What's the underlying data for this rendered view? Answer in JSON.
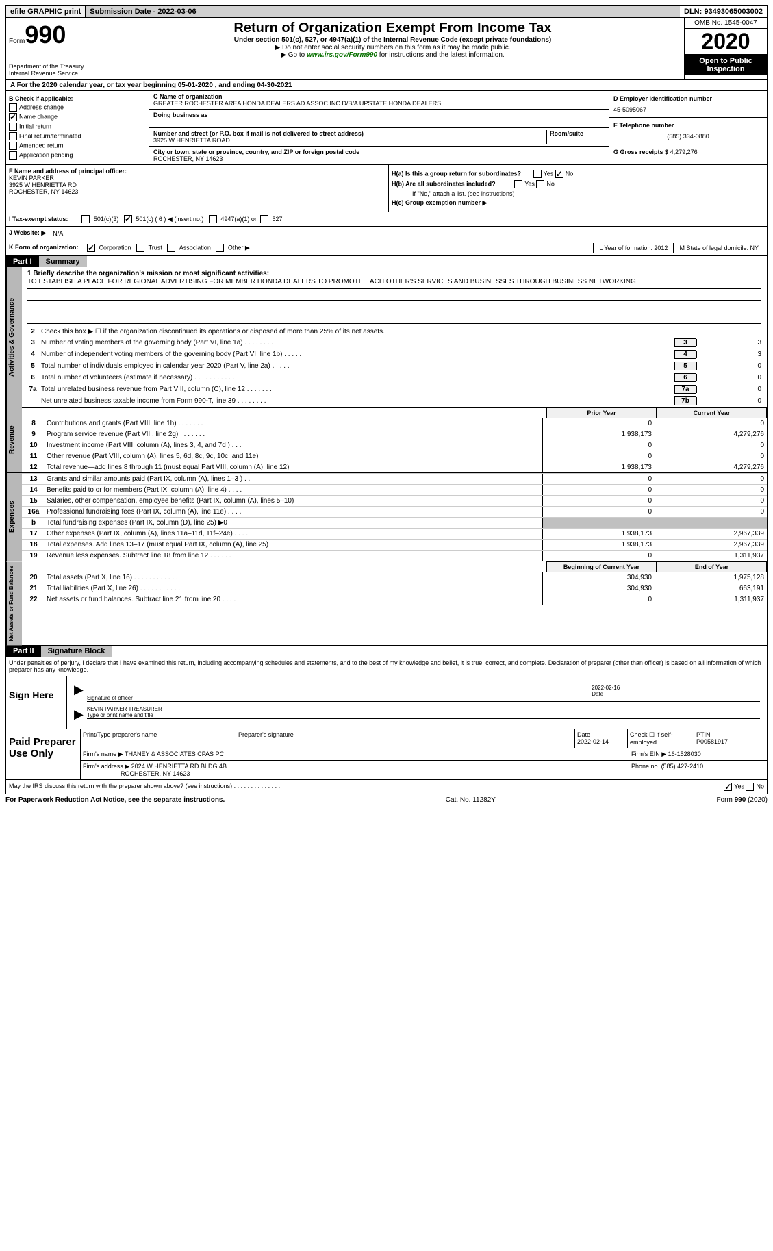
{
  "topbar": {
    "efile": "efile GRAPHIC print",
    "submission": "Submission Date - 2022-03-06",
    "dln": "DLN: 93493065003002"
  },
  "header": {
    "form_label": "Form",
    "form_num": "990",
    "dept": "Department of the Treasury Internal Revenue Service",
    "title": "Return of Organization Exempt From Income Tax",
    "subtitle": "Under section 501(c), 527, or 4947(a)(1) of the Internal Revenue Code (except private foundations)",
    "arrow1": "▶ Do not enter social security numbers on this form as it may be made public.",
    "arrow2_prefix": "▶ Go to ",
    "arrow2_link": "www.irs.gov/Form990",
    "arrow2_suffix": " for instructions and the latest information.",
    "omb": "OMB No. 1545-0047",
    "year": "2020",
    "inspection": "Open to Public Inspection"
  },
  "section_a": "A For the 2020 calendar year, or tax year beginning 05-01-2020    , and ending 04-30-2021",
  "col_b": {
    "header": "B Check if applicable:",
    "items": [
      {
        "label": "Address change",
        "checked": false
      },
      {
        "label": "Name change",
        "checked": true
      },
      {
        "label": "Initial return",
        "checked": false
      },
      {
        "label": "Final return/terminated",
        "checked": false
      },
      {
        "label": "Amended return",
        "checked": false
      },
      {
        "label": "Application pending",
        "checked": false
      }
    ]
  },
  "col_c": {
    "name_label": "C Name of organization",
    "name": "GREATER ROCHESTER AREA HONDA DEALERS AD ASSOC INC D/B/A UPSTATE HONDA DEALERS",
    "dba_label": "Doing business as",
    "address_label": "Number and street (or P.O. box if mail is not delivered to street address)",
    "room_label": "Room/suite",
    "address": "3925 W HENRIETTA ROAD",
    "city_label": "City or town, state or province, country, and ZIP or foreign postal code",
    "city": "ROCHESTER, NY  14623"
  },
  "col_right": {
    "d_label": "D Employer identification number",
    "d_val": "45-5095067",
    "e_label": "E Telephone number",
    "e_val": "(585) 334-0880",
    "g_label": "G Gross receipts $",
    "g_val": "4,279,276"
  },
  "f": {
    "label": "F Name and address of principal officer:",
    "name": "KEVIN PARKER",
    "addr": "3925 W HENRIETTA RD",
    "city": "ROCHESTER, NY  14623"
  },
  "h": {
    "a_label": "H(a)  Is this a group return for subordinates?",
    "b_label": "H(b)  Are all subordinates included?",
    "note": "If \"No,\" attach a list. (see instructions)",
    "c_label": "H(c)  Group exemption number ▶"
  },
  "i": {
    "label": "I  Tax-exempt status:",
    "opts": [
      "501(c)(3)",
      "501(c) ( 6 ) ◀ (insert no.)",
      "4947(a)(1) or",
      "527"
    ],
    "checked_idx": 1
  },
  "j": {
    "label": "J  Website: ▶",
    "val": "N/A"
  },
  "k": {
    "label": "K Form of organization:",
    "opts": [
      "Corporation",
      "Trust",
      "Association",
      "Other ▶"
    ],
    "checked_idx": 0,
    "l": "L Year of formation: 2012",
    "m": "M State of legal domicile: NY"
  },
  "part1": {
    "label": "Part I",
    "title": "Summary"
  },
  "mission": {
    "label": "1 Briefly describe the organization's mission or most significant activities:",
    "text": "TO ESTABLISH A PLACE FOR REGIONAL ADVERTISING FOR MEMBER HONDA DEALERS TO PROMOTE EACH OTHER'S SERVICES AND BUSINESSES THROUGH BUSINESS NETWORKING"
  },
  "gov_side": "Activities & Governance",
  "line2": "Check this box ▶ ☐  if the organization discontinued its operations or disposed of more than 25% of its net assets.",
  "gov_lines": [
    {
      "n": "3",
      "t": "Number of voting members of the governing body (Part VI, line 1a)   .   .   .   .   .   .   .   .",
      "box": "3",
      "v": "3"
    },
    {
      "n": "4",
      "t": "Number of independent voting members of the governing body (Part VI, line 1b)   .   .   .   .   .",
      "box": "4",
      "v": "3"
    },
    {
      "n": "5",
      "t": "Total number of individuals employed in calendar year 2020 (Part V, line 2a)   .   .   .   .   .",
      "box": "5",
      "v": "0"
    },
    {
      "n": "6",
      "t": "Total number of volunteers (estimate if necessary)   .   .   .   .   .   .   .   .   .   .   .",
      "box": "6",
      "v": "0"
    },
    {
      "n": "7a",
      "t": "Total unrelated business revenue from Part VIII, column (C), line 12   .   .   .   .   .   .   .",
      "box": "7a",
      "v": "0"
    },
    {
      "n": "",
      "t": "Net unrelated business taxable income from Form 990-T, line 39   .   .   .   .   .   .   .   .",
      "box": "7b",
      "v": "0"
    }
  ],
  "col_headers": {
    "prior": "Prior Year",
    "current": "Current Year"
  },
  "rev_side": "Revenue",
  "rev_lines": [
    {
      "n": "8",
      "t": "Contributions and grants (Part VIII, line 1h)   .   .   .   .   .   .   .",
      "p": "0",
      "c": "0"
    },
    {
      "n": "9",
      "t": "Program service revenue (Part VIII, line 2g)   .   .   .   .   .   .   .",
      "p": "1,938,173",
      "c": "4,279,276"
    },
    {
      "n": "10",
      "t": "Investment income (Part VIII, column (A), lines 3, 4, and 7d )   .   .   .",
      "p": "0",
      "c": "0"
    },
    {
      "n": "11",
      "t": "Other revenue (Part VIII, column (A), lines 5, 6d, 8c, 9c, 10c, and 11e)",
      "p": "0",
      "c": "0"
    },
    {
      "n": "12",
      "t": "Total revenue—add lines 8 through 11 (must equal Part VIII, column (A), line 12)",
      "p": "1,938,173",
      "c": "4,279,276"
    }
  ],
  "exp_side": "Expenses",
  "exp_lines": [
    {
      "n": "13",
      "t": "Grants and similar amounts paid (Part IX, column (A), lines 1–3 )   .   .   .",
      "p": "0",
      "c": "0"
    },
    {
      "n": "14",
      "t": "Benefits paid to or for members (Part IX, column (A), line 4)   .   .   .   .",
      "p": "0",
      "c": "0"
    },
    {
      "n": "15",
      "t": "Salaries, other compensation, employee benefits (Part IX, column (A), lines 5–10)",
      "p": "0",
      "c": "0"
    },
    {
      "n": "16a",
      "t": "Professional fundraising fees (Part IX, column (A), line 11e)   .   .   .   .",
      "p": "0",
      "c": "0"
    },
    {
      "n": "b",
      "t": "Total fundraising expenses (Part IX, column (D), line 25) ▶0",
      "p": "",
      "c": "",
      "shaded": true
    },
    {
      "n": "17",
      "t": "Other expenses (Part IX, column (A), lines 11a–11d, 11f–24e)   .   .   .   .",
      "p": "1,938,173",
      "c": "2,967,339"
    },
    {
      "n": "18",
      "t": "Total expenses. Add lines 13–17 (must equal Part IX, column (A), line 25)",
      "p": "1,938,173",
      "c": "2,967,339"
    },
    {
      "n": "19",
      "t": "Revenue less expenses. Subtract line 18 from line 12   .   .   .   .   .   .",
      "p": "0",
      "c": "1,311,937"
    }
  ],
  "na_side": "Net Assets or Fund Balances",
  "na_headers": {
    "begin": "Beginning of Current Year",
    "end": "End of Year"
  },
  "na_lines": [
    {
      "n": "20",
      "t": "Total assets (Part X, line 16)   .   .   .   .   .   .   .   .   .   .   .   .",
      "p": "304,930",
      "c": "1,975,128"
    },
    {
      "n": "21",
      "t": "Total liabilities (Part X, line 26)   .   .   .   .   .   .   .   .   .   .   .",
      "p": "304,930",
      "c": "663,191"
    },
    {
      "n": "22",
      "t": "Net assets or fund balances. Subtract line 21 from line 20   .   .   .   .",
      "p": "0",
      "c": "1,311,937"
    }
  ],
  "part2": {
    "label": "Part II",
    "title": "Signature Block"
  },
  "declaration": "Under penalties of perjury, I declare that I have examined this return, including accompanying schedules and statements, and to the best of my knowledge and belief, it is true, correct, and complete. Declaration of preparer (other than officer) is based on all information of which preparer has any knowledge.",
  "sign": {
    "label": "Sign Here",
    "sig_label": "Signature of officer",
    "date": "2022-02-16",
    "date_label": "Date",
    "name": "KEVIN PARKER  TREASURER",
    "name_label": "Type or print name and title"
  },
  "preparer": {
    "label": "Paid Preparer Use Only",
    "print_label": "Print/Type preparer's name",
    "sig_label": "Preparer's signature",
    "date_label": "Date",
    "date": "2022-02-14",
    "check_label": "Check ☐ if self-employed",
    "ptin_label": "PTIN",
    "ptin": "P00581917",
    "firm_name_label": "Firm's name     ▶",
    "firm_name": "THANEY & ASSOCIATES CPAS PC",
    "firm_ein_label": "Firm's EIN ▶",
    "firm_ein": "16-1528030",
    "firm_addr_label": "Firm's address ▶",
    "firm_addr": "2024 W HENRIETTA RD BLDG 4B",
    "firm_city": "ROCHESTER, NY  14623",
    "phone_label": "Phone no.",
    "phone": "(585) 427-2410"
  },
  "discuss": "May the IRS discuss this return with the preparer shown above? (see instructions)   .   .   .   .   .   .   .   .   .   .   .   .   .   .",
  "bottom": {
    "left": "For Paperwork Reduction Act Notice, see the separate instructions.",
    "center": "Cat. No. 11282Y",
    "right": "Form 990 (2020)"
  }
}
